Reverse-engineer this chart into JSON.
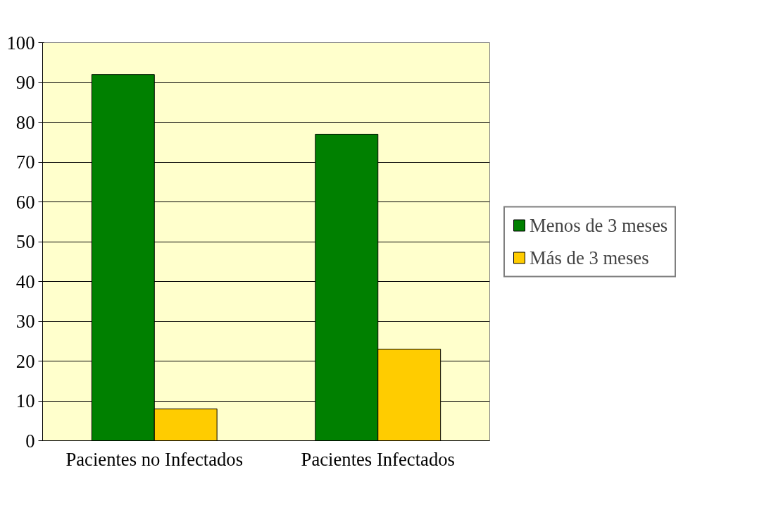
{
  "chart_data": {
    "type": "bar",
    "categories": [
      "Pacientes no Infectados",
      "Pacientes Infectados"
    ],
    "series": [
      {
        "name": "Menos de 3 meses",
        "color": "#008000",
        "values": [
          92,
          77
        ]
      },
      {
        "name": "Más de 3 meses",
        "color": "#ffcc00",
        "values": [
          8,
          23
        ]
      }
    ],
    "ylim": [
      0,
      100
    ],
    "yticks": [
      0,
      10,
      20,
      30,
      40,
      50,
      60,
      70,
      80,
      90,
      100
    ],
    "grid": "y",
    "legend": "right"
  }
}
